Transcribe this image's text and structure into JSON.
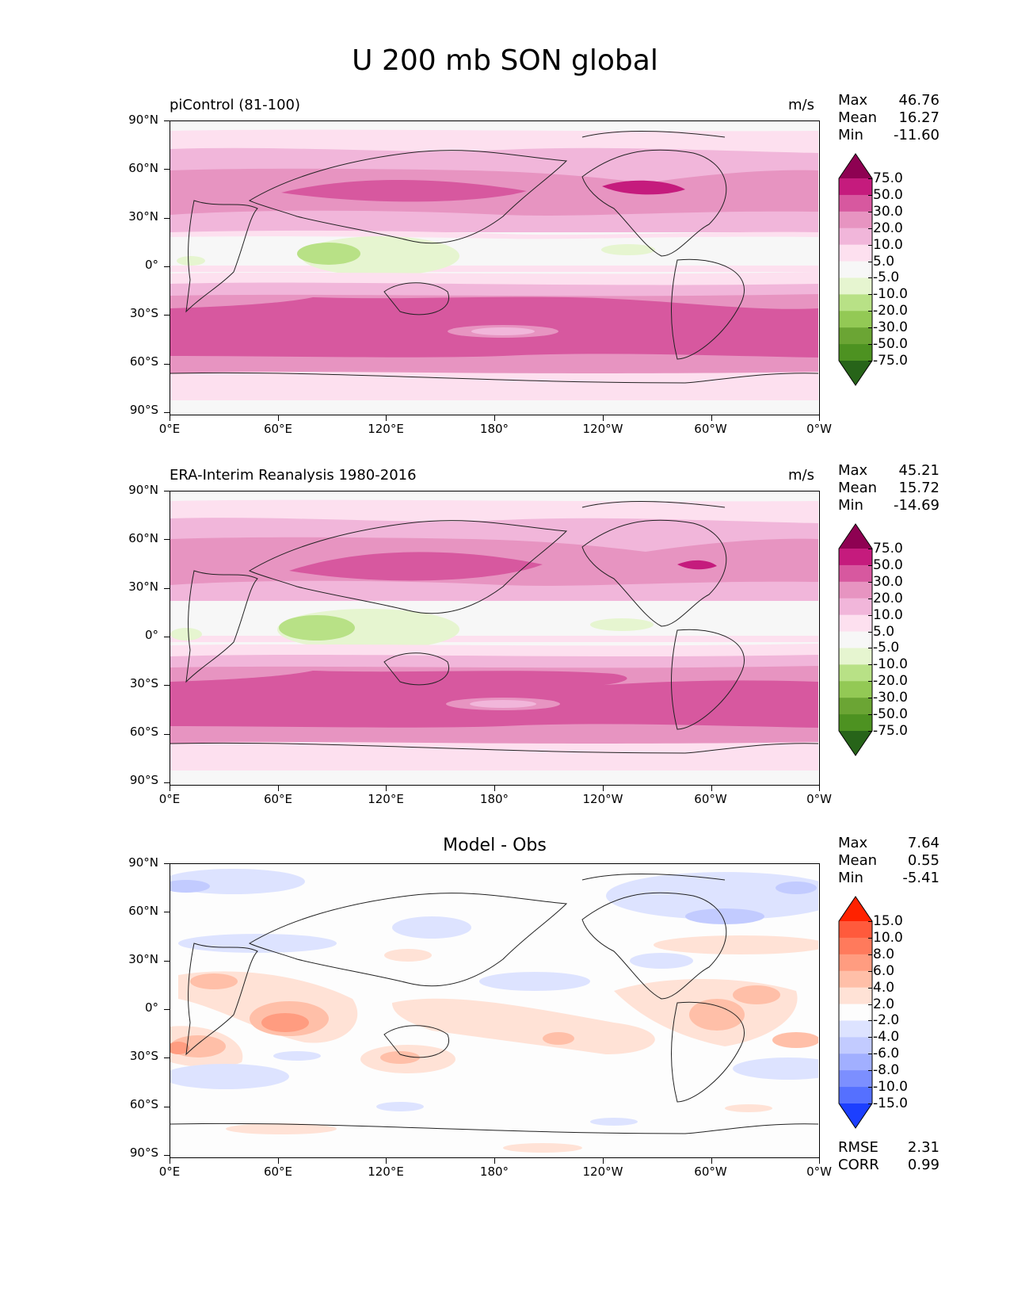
{
  "suptitle": "U 200 mb SON global",
  "lat_ticks": [
    "90°N",
    "60°N",
    "30°N",
    "0°",
    "30°S",
    "60°S",
    "90°S"
  ],
  "lon_ticks": [
    "0°E",
    "60°E",
    "120°E",
    "180°",
    "120°W",
    "60°W",
    "0°W"
  ],
  "panels": [
    {
      "title_left": "piControl (81-100)",
      "units": "m/s",
      "stats": [
        {
          "label": "Max",
          "value": "46.76"
        },
        {
          "label": "Mean",
          "value": "16.27"
        },
        {
          "label": "Min",
          "value": "-11.60"
        }
      ],
      "colorbar_labels": [
        "75.0",
        "50.0",
        "30.0",
        "20.0",
        "10.0",
        "5.0",
        "-5.0",
        "-10.0",
        "-20.0",
        "-30.0",
        "-50.0",
        "-75.0"
      ]
    },
    {
      "title_left": "ERA-Interim Reanalysis 1980-2016",
      "units": "m/s",
      "stats": [
        {
          "label": "Max",
          "value": "45.21"
        },
        {
          "label": "Mean",
          "value": "15.72"
        },
        {
          "label": "Min",
          "value": "-14.69"
        }
      ],
      "colorbar_labels": [
        "75.0",
        "50.0",
        "30.0",
        "20.0",
        "10.0",
        "5.0",
        "-5.0",
        "-10.0",
        "-20.0",
        "-30.0",
        "-50.0",
        "-75.0"
      ]
    },
    {
      "title_center": "Model - Obs",
      "stats": [
        {
          "label": "Max",
          "value": "7.64"
        },
        {
          "label": "Mean",
          "value": "0.55"
        },
        {
          "label": "Min",
          "value": "-5.41"
        }
      ],
      "colorbar_labels": [
        "15.0",
        "10.0",
        "8.0",
        "6.0",
        "4.0",
        "2.0",
        "-2.0",
        "-4.0",
        "-6.0",
        "-8.0",
        "-10.0",
        "-15.0"
      ],
      "metrics": [
        {
          "label": "RMSE",
          "value": "2.31"
        },
        {
          "label": "CORR",
          "value": "0.99"
        }
      ]
    }
  ],
  "colors": {
    "wind_scale": [
      "#8e0152",
      "#c51b7d",
      "#d7589f",
      "#e794c1",
      "#f1b6da",
      "#fde0ef",
      "#f7f7f7",
      "#e6f5d0",
      "#b8e186",
      "#93c955",
      "#6ba534",
      "#4d9221",
      "#276419"
    ],
    "diff_scale": [
      "#ff2200",
      "#ff5a3c",
      "#ff7a5c",
      "#ff9c80",
      "#ffbfa8",
      "#ffe2d6",
      "#fdfdfd",
      "#dde3ff",
      "#c2cbff",
      "#a1afff",
      "#7c8fff",
      "#5570ff",
      "#1c3fff"
    ]
  },
  "chart_data": [
    {
      "type": "heatmap",
      "title": "piControl (81-100)",
      "units": "m/s",
      "x_ticks": [
        "0°E",
        "60°E",
        "120°E",
        "180°",
        "120°W",
        "60°W",
        "0°W"
      ],
      "y_ticks": [
        "90°N",
        "60°N",
        "30°N",
        "0°",
        "30°S",
        "60°S",
        "90°S"
      ],
      "levels": [
        -75,
        -50,
        -30,
        -20,
        -10,
        -5,
        5,
        10,
        20,
        30,
        50,
        75
      ],
      "zonal_mean_by_lat": {
        "lat": [
          80,
          60,
          45,
          30,
          15,
          0,
          -15,
          -30,
          -45,
          -60,
          -75
        ],
        "u": [
          6,
          14,
          26,
          30,
          14,
          0,
          14,
          33,
          35,
          22,
          8
        ]
      },
      "stats": {
        "max": 46.76,
        "mean": 16.27,
        "min": -11.6
      }
    },
    {
      "type": "heatmap",
      "title": "ERA-Interim Reanalysis 1980-2016",
      "units": "m/s",
      "x_ticks": [
        "0°E",
        "60°E",
        "120°E",
        "180°",
        "120°W",
        "60°W",
        "0°W"
      ],
      "y_ticks": [
        "90°N",
        "60°N",
        "30°N",
        "0°",
        "30°S",
        "60°S",
        "90°S"
      ],
      "levels": [
        -75,
        -50,
        -30,
        -20,
        -10,
        -5,
        5,
        10,
        20,
        30,
        50,
        75
      ],
      "zonal_mean_by_lat": {
        "lat": [
          80,
          60,
          45,
          30,
          15,
          0,
          -15,
          -30,
          -45,
          -60,
          -75
        ],
        "u": [
          6,
          14,
          26,
          32,
          14,
          -2,
          14,
          32,
          34,
          22,
          6
        ]
      },
      "stats": {
        "max": 45.21,
        "mean": 15.72,
        "min": -14.69
      }
    },
    {
      "type": "heatmap",
      "title": "Model - Obs",
      "x_ticks": [
        "0°E",
        "60°E",
        "120°E",
        "180°",
        "120°W",
        "60°W",
        "0°W"
      ],
      "y_ticks": [
        "90°N",
        "60°N",
        "30°N",
        "0°",
        "30°S",
        "60°S",
        "90°S"
      ],
      "levels": [
        -15,
        -10,
        -8,
        -6,
        -4,
        -2,
        2,
        4,
        6,
        8,
        10,
        15
      ],
      "stats": {
        "max": 7.64,
        "mean": 0.55,
        "min": -5.41
      },
      "rmse": 2.31,
      "corr": 0.99
    }
  ]
}
